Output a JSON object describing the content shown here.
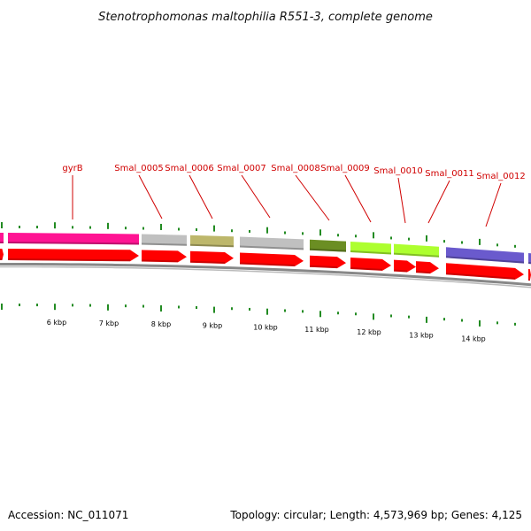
{
  "title": "Stenotrophomonas maltophilia R551-3, complete genome",
  "footer": {
    "accession": "Accession: NC_011071",
    "summary": "Topology: circular; Length: 4,573,969 bp; Genes: 4,125"
  },
  "colors": {
    "cds_arrow": "#ff0000",
    "backbone": "#888888",
    "tick": "#228b22",
    "label": "#d00000",
    "callout_line": "#d00000"
  },
  "scale_labels": [
    "6 kbp",
    "7 kbp",
    "8 kbp",
    "9 kbp",
    "10 kbp",
    "11 kbp",
    "12 kbp",
    "13 kbp",
    "14 kbp"
  ],
  "genes": [
    {
      "label": "",
      "color": "#ff1493"
    },
    {
      "label": "gyrB",
      "color": "#ff1493"
    },
    {
      "label": "Smal_0005",
      "color": "#c0c0c0"
    },
    {
      "label": "Smal_0006",
      "color": "#bdb76b"
    },
    {
      "label": "Smal_0007",
      "color": "#c0c0c0"
    },
    {
      "label": "Smal_0008",
      "color": "#6b8e23"
    },
    {
      "label": "Smal_0009",
      "color": "#adff2f"
    },
    {
      "label": "Smal_0010",
      "color": "#adff2f"
    },
    {
      "label": "Smal_0011",
      "color": "#adff2f"
    },
    {
      "label": "Smal_0012",
      "color": "#6a5acd"
    },
    {
      "label": "",
      "color": "#6a5acd"
    }
  ]
}
